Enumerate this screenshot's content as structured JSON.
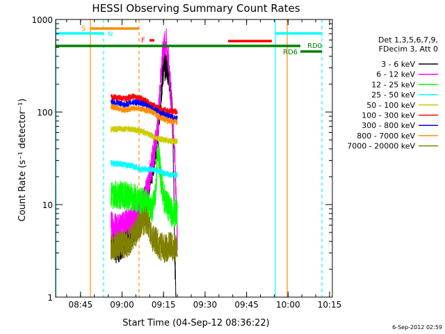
{
  "chart_data": {
    "type": "line",
    "title": "HESSI Observing Summary Count Rates",
    "xlabel": "Start Time (04-Sep-12 08:36:22)",
    "ylabel": "Count Rate (s⁻¹ detector⁻¹)",
    "x_range_minutes": [
      0,
      100
    ],
    "x_tick_minutes": [
      9,
      24,
      39,
      54,
      69,
      84,
      99
    ],
    "x_tick_labels": [
      "08:45",
      "09:00",
      "09:15",
      "09:30",
      "09:45",
      "10:00",
      "10:15"
    ],
    "ylim": [
      1,
      1000
    ],
    "y_scale": "log",
    "y_tick_labels": [
      "1",
      "10",
      "100",
      "1000"
    ],
    "legend_header": [
      "Det 1,3,5,6,7,9,",
      "FDecim 3, Att 0"
    ],
    "legend_placement": "right",
    "series": [
      {
        "name": "3 - 6 keV",
        "color": "#000000",
        "x": [
          20,
          22,
          25,
          28,
          31,
          33,
          35,
          37,
          38,
          39,
          40,
          41,
          42,
          42.5,
          43,
          43.5
        ],
        "y": [
          4,
          3.2,
          4,
          5.5,
          8,
          14,
          25,
          60,
          150,
          300,
          320,
          250,
          120,
          40,
          3,
          1
        ]
      },
      {
        "name": "6 - 12 keV",
        "color": "#ff00ff",
        "x": [
          20,
          22,
          25,
          28,
          31,
          33,
          35,
          37,
          38,
          39,
          40,
          41,
          42,
          43,
          44
        ],
        "y": [
          6,
          5.5,
          6,
          7,
          9,
          14,
          30,
          70,
          250,
          500,
          560,
          300,
          100,
          40,
          4
        ]
      },
      {
        "name": "12 - 25 keV",
        "color": "#00ff00",
        "x": [
          20,
          25,
          28,
          31,
          33,
          35,
          36,
          37,
          38,
          39,
          41,
          42,
          43,
          44
        ],
        "y": [
          13,
          12.5,
          12,
          11,
          10,
          9,
          12,
          42,
          20,
          12,
          9,
          8,
          8,
          8
        ]
      },
      {
        "name": "25 - 50 keV",
        "color": "#00ffff",
        "x": [
          20,
          25,
          28,
          31,
          35,
          37,
          39,
          41,
          43,
          44
        ],
        "y": [
          28,
          27,
          26,
          24,
          24,
          23,
          22,
          21,
          21,
          21
        ]
      },
      {
        "name": "50 - 100 keV",
        "color": "#cccc00",
        "x": [
          20,
          25,
          28,
          31,
          35,
          37,
          39,
          41,
          43,
          44
        ],
        "y": [
          65,
          66,
          65,
          62,
          55,
          52,
          50,
          49,
          48,
          48
        ]
      },
      {
        "name": "100 - 300 keV",
        "color": "#ff0000",
        "x": [
          20,
          25,
          28,
          31,
          35,
          37,
          39,
          41,
          43,
          44
        ],
        "y": [
          145,
          140,
          148,
          140,
          120,
          110,
          105,
          103,
          102,
          100
        ]
      },
      {
        "name": "300 - 800 keV",
        "color": "#0000ff",
        "x": [
          20,
          25,
          28,
          31,
          35,
          37,
          39,
          41,
          43,
          44
        ],
        "y": [
          130,
          120,
          128,
          125,
          110,
          100,
          95,
          90,
          85,
          85
        ]
      },
      {
        "name": "800 - 7000 keV",
        "color": "#ff8c00",
        "x": [
          20,
          25,
          28,
          31,
          35,
          37,
          39,
          41,
          43,
          44
        ],
        "y": [
          115,
          105,
          110,
          108,
          100,
          90,
          85,
          80,
          78,
          78
        ]
      },
      {
        "name": "7000 - 20000 keV",
        "color": "#808000",
        "x": [
          20,
          23,
          25,
          28,
          31,
          33,
          35,
          37,
          39,
          41,
          43,
          44
        ],
        "y": [
          3.5,
          3.7,
          3.6,
          4.5,
          6.5,
          6.8,
          4.5,
          3.8,
          3.3,
          3.6,
          3.4,
          3.5
        ]
      }
    ],
    "annotations": [
      {
        "label": "S",
        "color": "#ff8c00"
      },
      {
        "label": "N",
        "color": "#00ffff"
      },
      {
        "label": "F",
        "color": "#ff0000"
      },
      {
        "label": "RD0",
        "color": "#008000"
      },
      {
        "label": "RD6",
        "color": "#008000"
      }
    ],
    "footer_date": "6-Sep-2012 02:59"
  }
}
